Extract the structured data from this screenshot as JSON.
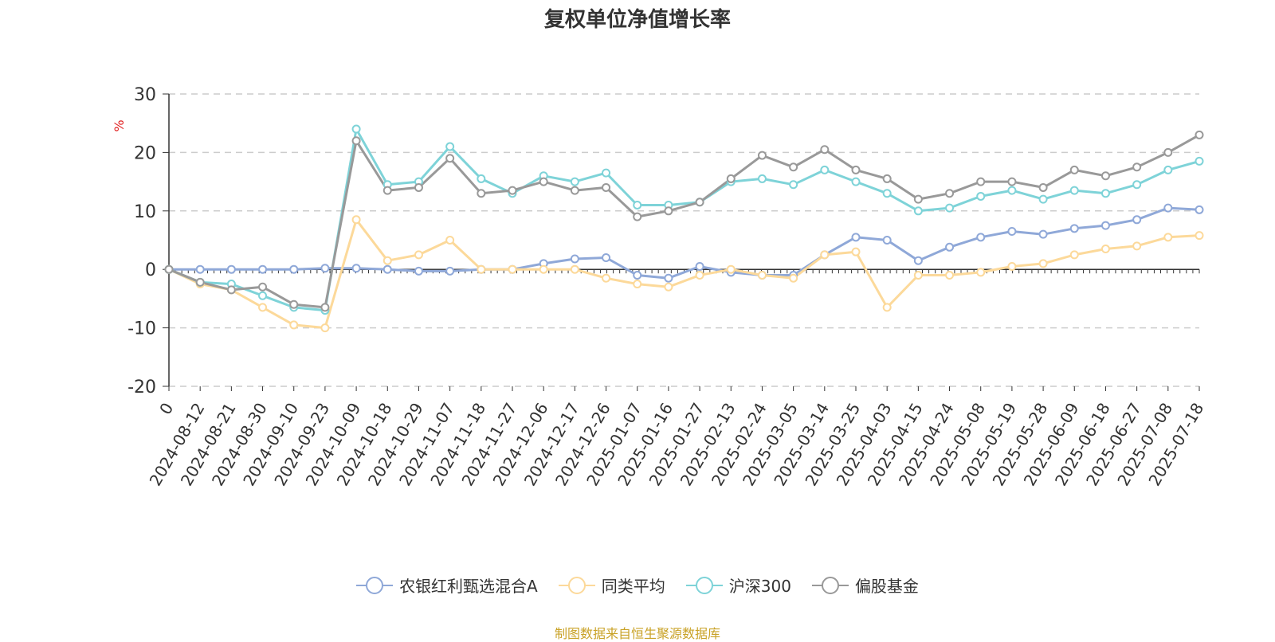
{
  "chart_data": {
    "type": "line",
    "title": "复权单位净值增长率",
    "ylabel": "%",
    "ylim": [
      -20,
      30
    ],
    "yticks": [
      30,
      20,
      10,
      0,
      -10,
      -20
    ],
    "grid": true,
    "legend_position": "bottom",
    "x_ticks": [
      "0",
      "2024-08-12",
      "2024-08-21",
      "2024-08-30",
      "2024-09-10",
      "2024-09-23",
      "2024-10-09",
      "2024-10-18",
      "2024-10-29",
      "2024-11-07",
      "2024-11-18",
      "2024-11-27",
      "2024-12-06",
      "2024-12-17",
      "2024-12-26",
      "2025-01-07",
      "2025-01-16",
      "2025-01-27",
      "2025-02-13",
      "2025-02-24",
      "2025-03-05",
      "2025-03-14",
      "2025-03-25",
      "2025-04-03",
      "2025-04-15",
      "2025-04-24",
      "2025-05-08",
      "2025-05-19",
      "2025-05-28",
      "2025-06-09",
      "2025-06-18",
      "2025-06-27",
      "2025-07-08",
      "2025-07-18"
    ],
    "series": [
      {
        "name": "农银红利甄选混合A",
        "color": "#8fa8d8",
        "values": [
          0,
          0,
          0,
          0,
          0,
          0.2,
          0.2,
          0,
          -0.3,
          -0.3,
          0,
          0,
          1.0,
          1.8,
          2.0,
          -1.0,
          -1.5,
          0.5,
          -0.5,
          -1.0,
          -1.0,
          2.5,
          5.5,
          5.0,
          1.5,
          3.8,
          5.5,
          6.5,
          6.0,
          7.0,
          7.5,
          8.5,
          10.5,
          10.2
        ]
      },
      {
        "name": "同类平均",
        "color": "#fcd99a",
        "values": [
          0,
          -2.5,
          -3.5,
          -6.5,
          -9.5,
          -10.0,
          8.5,
          1.5,
          2.5,
          5.0,
          0,
          0,
          0,
          0,
          -1.5,
          -2.5,
          -3.0,
          -1.0,
          0,
          -1.0,
          -1.5,
          2.5,
          3.0,
          -6.5,
          -1.0,
          -1.0,
          -0.5,
          0.5,
          1.0,
          2.5,
          3.5,
          4.0,
          5.5,
          5.8
        ]
      },
      {
        "name": "沪深300",
        "color": "#7ed3d8",
        "values": [
          0,
          -2.2,
          -2.5,
          -4.5,
          -6.5,
          -7.0,
          24.0,
          14.5,
          15.0,
          21.0,
          15.5,
          13.0,
          16.0,
          15.0,
          16.5,
          11.0,
          11.0,
          11.5,
          15.0,
          15.5,
          14.5,
          17.0,
          15.0,
          13.0,
          10.0,
          10.5,
          12.5,
          13.5,
          12.0,
          13.5,
          13.0,
          14.5,
          17.0,
          18.5
        ]
      },
      {
        "name": "偏股基金",
        "color": "#999999",
        "values": [
          0,
          -2.2,
          -3.5,
          -3.0,
          -6.0,
          -6.5,
          22.0,
          13.5,
          14.0,
          19.0,
          13.0,
          13.5,
          15.0,
          13.5,
          14.0,
          9.0,
          10.0,
          11.5,
          15.5,
          19.5,
          17.5,
          20.5,
          17.0,
          15.5,
          12.0,
          13.0,
          15.0,
          15.0,
          14.0,
          17.0,
          16.0,
          17.5,
          20.0,
          23.0
        ]
      }
    ]
  },
  "legend": {
    "items": [
      "农银红利甄选混合A",
      "同类平均",
      "沪深300",
      "偏股基金"
    ]
  },
  "source": "制图数据来自恒生聚源数据库"
}
